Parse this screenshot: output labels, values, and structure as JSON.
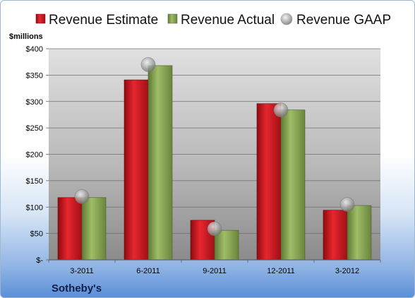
{
  "chart_data": {
    "type": "bar",
    "title": "Sotheby's",
    "ylabel": "$millions",
    "categories": [
      "3-2011",
      "6-2011",
      "9-2011",
      "12-2011",
      "3-2012"
    ],
    "series": [
      {
        "name": "Revenue Estimate",
        "kind": "bar",
        "color": "#d01f26",
        "values": [
          118,
          341,
          75,
          296,
          94
        ]
      },
      {
        "name": "Revenue Actual",
        "kind": "bar",
        "color": "#8ca85a",
        "values": [
          118,
          368,
          56,
          284,
          103
        ]
      },
      {
        "name": "Revenue GAAP",
        "kind": "marker",
        "color": "#a8a8a8",
        "values": [
          120,
          370,
          59,
          284,
          105
        ]
      }
    ],
    "ylim": [
      0,
      400
    ],
    "yticks": [
      0,
      50,
      100,
      150,
      200,
      250,
      300,
      350,
      400
    ],
    "ytick_labels": [
      "$-",
      "$50",
      "$100",
      "$150",
      "$200",
      "$250",
      "$300",
      "$350",
      "$400"
    ],
    "grid": true,
    "legend_position": "top"
  }
}
